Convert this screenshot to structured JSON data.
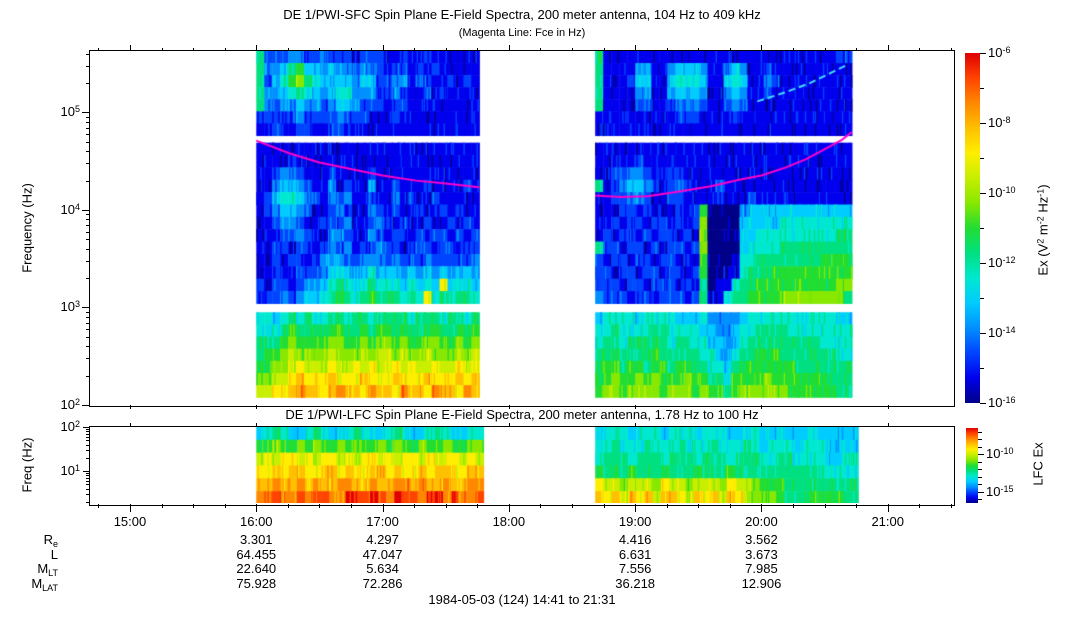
{
  "chart_data": {
    "type": "spectrogram-heatmap",
    "figure_caption": "1984-05-03 (124) 14:41 to 21:31",
    "palette": [
      "#000088",
      "#0000ee",
      "#0044ff",
      "#0090ff",
      "#00ccff",
      "#00e8d0",
      "#00e080",
      "#22dd33",
      "#88e800",
      "#c8ee00",
      "#ffee00",
      "#ffc000",
      "#ff8800",
      "#ff4400",
      "#e00000"
    ],
    "magenta_color": "#ff00cc",
    "streak_color": "#44ddff",
    "time": {
      "start_label": "14:41",
      "end_label": "21:31",
      "total_minutes": 410,
      "minor_step_minutes": 15,
      "hour_ticks": [
        {
          "t": 19,
          "label": "15:00"
        },
        {
          "t": 79,
          "label": "16:00"
        },
        {
          "t": 139,
          "label": "17:00"
        },
        {
          "t": 199,
          "label": "18:00"
        },
        {
          "t": 259,
          "label": "19:00"
        },
        {
          "t": 319,
          "label": "20:00"
        },
        {
          "t": 379,
          "label": "21:00"
        }
      ]
    },
    "sfc": {
      "title": "DE 1/PWI-SFC  Spin Plane E-Field Spectra, 200 meter antenna, 104 Hz to 409 kHz",
      "subtitle": "(Magenta Line: Fce in Hz)",
      "ylabel": "Frequency (Hz)",
      "freq_min": 100,
      "freq_max": 427000,
      "yticks": [
        {
          "f": 100000,
          "label": "10^5"
        },
        {
          "f": 10000,
          "label": "10^4"
        },
        {
          "f": 1000,
          "label": "10^3"
        },
        {
          "f": 100,
          "label": "10^2"
        }
      ],
      "bands": [
        {
          "name": "A",
          "f_top": 427000,
          "f_bottom": 58000
        },
        {
          "name": "B",
          "f_top": 49000,
          "f_bottom": 1100
        },
        {
          "name": "C",
          "f_top": 893,
          "f_bottom": 120
        }
      ],
      "segments": [
        {
          "t0": 79,
          "t1": 185,
          "grids": {
            "A": [
              "6222332232221222112112111111",
              "6334674434332332122121211111",
              "6245786544443442233122112121",
              "6334565434553332232112121111",
              "6323343323443222122111111111",
              "2222232222322211121111111111",
              "1121122112211111111111111111"
            ],
            "B": [
              "1111111111111111111111111111",
              "1111211111111111111111111111",
              "1123321112111121111111111111",
              "1134432113121131121112111121",
              "1245543213231121131211211111",
              "1234432112321132121121121211",
              "1123321122231123212112112121",
              "1112232113321132122121221212",
              "1122122123231223221222122122",
              "1121221233322333232223222223",
              "1121122234543454443434343443",
              "21221233456545655545454a4554",
              "222323445676567666565a565665"
            ],
            "C": [
              "5545656556656656666566656656",
              "5556766667766767767667766767",
              "6667877778877878878778877878",
              "6778988889888989989889888989",
              "77889a999a99a9a99a9a99a99a9a",
              "8899abaaabaaabaaabaaabaaabab",
              "99aabcbbabcbbacbbacbbacbbacb"
            ]
          }
        },
        {
          "t0": 240,
          "t1": 362,
          "grids": {
            "A": [
              "61111111111111111111111111111122",
              "61111331134443113431121111111111",
              "61112441145554114541132111111111",
              "61111331134443113431121111111111",
              "61111221123332112321111111111111",
              "11111111112221111211111111111111",
              "11111111111111111111111111111111"
            ],
            "B": [
              "11111111111111111111111111111111",
              "11111211111111111111111111111111",
              "11223321122111111111111111111111",
              "61234432123211121111111111111111",
              "11223321122111121112111111111111",
              "11122121112127000034444444444444",
              "11212212212128000044444555555555",
              "12122121221218000044555555555566",
              "62212212122128000045555666666666",
              "21221221221217000155666666667777",
              "22122122122127001156667777777777",
              "22212212221216011566777777777788",
              "32221221222126115667777888888886"
            ],
            "C": [
              "45555455554445333345555555555544",
              "55655556655554433455666655555555",
              "56656666656655443456666666665555",
              "66766667666665543566777666666655",
              "67767767767766554677777776666666",
              "77877878777877665777787777777666",
              "78878888788878776788888877777766"
            ]
          }
        }
      ],
      "fce_line_hz": [
        [
          [
            79,
            51500
          ],
          [
            95,
            38000
          ],
          [
            109,
            30700
          ],
          [
            125,
            26000
          ],
          [
            139,
            22600
          ],
          [
            155,
            20000
          ],
          [
            169,
            18700
          ],
          [
            185,
            17100
          ]
        ],
        [
          [
            240,
            14100
          ],
          [
            252,
            13600
          ],
          [
            265,
            13800
          ],
          [
            280,
            15500
          ],
          [
            295,
            17500
          ],
          [
            309,
            20500
          ],
          [
            319,
            22600
          ],
          [
            330,
            27000
          ],
          [
            340,
            33000
          ],
          [
            350,
            43000
          ],
          [
            357,
            52000
          ],
          [
            362,
            63000
          ]
        ]
      ],
      "rising_streak_hz": [
        [
          317,
          130000
        ],
        [
          330,
          160000
        ],
        [
          342,
          200000
        ],
        [
          352,
          255000
        ],
        [
          360,
          310000
        ]
      ]
    },
    "sfc_colorbar": {
      "label": "Ex (V^2 m^-2 Hz^-1)",
      "top_exp": -6,
      "bottom_exp": -16,
      "major_ticks": [
        {
          "exp": -6,
          "label": "10^-6"
        },
        {
          "exp": -8,
          "label": "10^-8"
        },
        {
          "exp": -10,
          "label": "10^-10"
        },
        {
          "exp": -12,
          "label": "10^-12"
        },
        {
          "exp": -14,
          "label": "10^-14"
        },
        {
          "exp": -16,
          "label": "10^-16"
        }
      ],
      "minor_exps": [
        -7,
        -9,
        -11,
        -13,
        -15
      ]
    },
    "lfc": {
      "title": "DE 1/PWI-LFC  Spin Plane E-Field Spectra, 200 meter antenna, 1.78 Hz to 100 Hz",
      "ylabel": "Freq (Hz)",
      "freq_min": 1.78,
      "freq_max": 100,
      "yticks": [
        {
          "f": 100,
          "label": "10^2"
        },
        {
          "f": 10,
          "label": "10^1"
        }
      ],
      "segments": [
        {
          "t0": 79,
          "t1": 187,
          "rows": [
            "4565445654556544565445654455",
            "7787787877878778787787787788",
            "9a9aa9a9aa9a9aa9a9aa9a9aa9a9",
            "aababbaabbabaabbabaababbaabb",
            "bbcbbcbcbbccbbcbbccbcbbcbbcc",
            "ccdccdcddcceddedceddcdecdccd"
          ]
        },
        {
          "t0": 240,
          "t1": 365,
          "rows": [
            "45554555455545554455445444544444",
            "55655565556555655565455545554444",
            "56665666566656665666556655554455",
            "76667666766676667666666666665555",
            "a9989998a9989998a998777666666666",
            "bab9bab9bba9bab9ba98887666777766"
          ]
        }
      ]
    },
    "lfc_colorbar": {
      "label": "LFC Ex",
      "top_exp": -6.5,
      "bottom_exp": -16.5,
      "major_ticks": [
        {
          "exp": -10,
          "label": "10^-10"
        },
        {
          "exp": -15,
          "label": "10^-15"
        }
      ],
      "minor_exps": [
        -7,
        -8,
        -9,
        -11,
        -12,
        -13,
        -14,
        -16
      ]
    },
    "annotations": {
      "row_labels": [
        "R_e",
        "L",
        "M_LT",
        "M_LAT"
      ],
      "columns": [
        {
          "t": 79,
          "values": [
            "3.301",
            "64.455",
            "22.640",
            "75.928"
          ]
        },
        {
          "t": 139,
          "values": [
            "4.297",
            "47.047",
            "5.634",
            "72.286"
          ]
        },
        {
          "t": 259,
          "values": [
            "4.416",
            "6.631",
            "7.556",
            "36.218"
          ]
        },
        {
          "t": 319,
          "values": [
            "3.562",
            "3.673",
            "7.985",
            "12.906"
          ]
        }
      ]
    }
  }
}
